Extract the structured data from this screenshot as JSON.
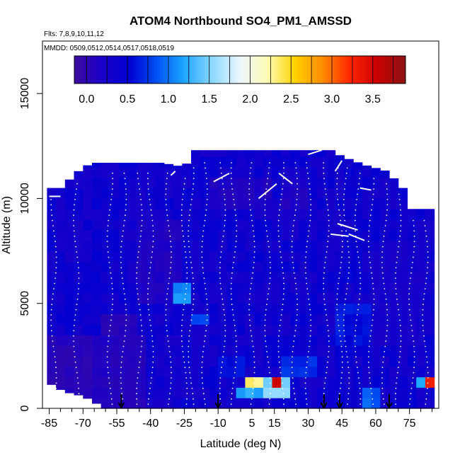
{
  "chart_data": {
    "type": "heatmap",
    "title": "ATOM4 Northbound SO4_PM1_AMSSD",
    "flights_note": "Flts: 7,8,9,10,11,12",
    "dates_note": "MMDD: 0509,0512,0514,0517,0518,0519",
    "xlabel": "Latitude (deg N)",
    "ylabel": "Altitude (m)",
    "xlim": [
      -88,
      88
    ],
    "ylim": [
      0,
      17500
    ],
    "x_ticks": [
      -85,
      -70,
      -55,
      -40,
      -25,
      -10,
      5,
      15,
      30,
      45,
      60,
      75
    ],
    "y_ticks": [
      0,
      5000,
      10000,
      15000
    ],
    "colorbar": {
      "min": -0.15,
      "max": 3.9,
      "ticks": [
        0.0,
        0.5,
        1.0,
        1.5,
        2.0,
        2.5,
        3.0,
        3.5
      ],
      "tick_labels": [
        "0.0",
        "0.5",
        "1.0",
        "1.5",
        "2.0",
        "2.5",
        "3.0",
        "3.5"
      ],
      "colors": [
        "#3d0a9e",
        "#1a00c8",
        "#0000d2",
        "#0052f5",
        "#1ea8ff",
        "#8cd8ff",
        "#ecf6ff",
        "#fffcb4",
        "#ffd200",
        "#ff8c00",
        "#ff2400",
        "#c80000",
        "#8c1414"
      ]
    },
    "column_tops_m": [
      [
        -85,
        10500
      ],
      [
        -80,
        10500
      ],
      [
        -75,
        11000
      ],
      [
        -70,
        11500
      ],
      [
        -65,
        11700
      ],
      [
        -55,
        11700
      ],
      [
        -45,
        11700
      ],
      [
        -35,
        11700
      ],
      [
        -25,
        11500
      ],
      [
        -20,
        12300
      ],
      [
        -10,
        12300
      ],
      [
        0,
        12300
      ],
      [
        10,
        12300
      ],
      [
        20,
        12300
      ],
      [
        30,
        12300
      ],
      [
        40,
        12300
      ],
      [
        45,
        12000
      ],
      [
        55,
        11600
      ],
      [
        65,
        11300
      ],
      [
        72,
        10500
      ],
      [
        76,
        9500
      ],
      [
        85,
        9500
      ]
    ],
    "column_bottoms_m": [
      [
        -85,
        1200
      ],
      [
        -80,
        900
      ],
      [
        -75,
        700
      ],
      [
        -70,
        600
      ],
      [
        -65,
        300
      ],
      [
        -60,
        0
      ],
      [
        85,
        0
      ]
    ],
    "background_value": 0.35,
    "patches": [
      {
        "lat": [
          -62,
          -45
        ],
        "alt": [
          1500,
          4500
        ],
        "value": 0.1
      },
      {
        "lat": [
          -85,
          -65
        ],
        "alt": [
          1000,
          3000
        ],
        "value": 0.05
      },
      {
        "lat": [
          -45,
          -25
        ],
        "alt": [
          5000,
          9000
        ],
        "value": 0.15
      },
      {
        "lat": [
          -30,
          -22
        ],
        "alt": [
          4800,
          5800
        ],
        "value": 1.1
      },
      {
        "lat": [
          -22,
          -15
        ],
        "alt": [
          3800,
          4500
        ],
        "value": 0.8
      },
      {
        "lat": [
          -10,
          0
        ],
        "alt": [
          1500,
          2500
        ],
        "value": 0.6
      },
      {
        "lat": [
          0,
          8
        ],
        "alt": [
          400,
          900
        ],
        "value": 1.2
      },
      {
        "lat": [
          3,
          13
        ],
        "alt": [
          1200,
          1700
        ],
        "value": 2.3
      },
      {
        "lat": [
          10,
          20
        ],
        "alt": [
          500,
          1300
        ],
        "value": 1.5
      },
      {
        "lat": [
          13,
          15
        ],
        "alt": [
          1000,
          1600
        ],
        "value": 3.1
      },
      {
        "lat": [
          14,
          16
        ],
        "alt": [
          1100,
          1500
        ],
        "value": 3.6
      },
      {
        "lat": [
          20,
          32
        ],
        "alt": [
          1500,
          2300
        ],
        "value": 0.7
      },
      {
        "lat": [
          44,
          60
        ],
        "alt": [
          3000,
          5000
        ],
        "value": 0.6
      },
      {
        "lat": [
          48,
          55
        ],
        "alt": [
          6000,
          7000
        ],
        "value": 0.5
      },
      {
        "lat": [
          20,
          30
        ],
        "alt": [
          9500,
          11000
        ],
        "value": 0.15
      },
      {
        "lat": [
          -15,
          15
        ],
        "alt": [
          9500,
          11200
        ],
        "value": 0.15
      },
      {
        "lat": [
          78,
          84
        ],
        "alt": [
          1100,
          1600
        ],
        "value": 1.2
      },
      {
        "lat": [
          81,
          84
        ],
        "alt": [
          1100,
          1600
        ],
        "value": 3.2
      },
      {
        "lat": [
          55,
          62
        ],
        "alt": [
          100,
          800
        ],
        "value": 0.9
      },
      {
        "lat": [
          60,
          80
        ],
        "alt": [
          3000,
          8000
        ],
        "value": 0.25
      }
    ],
    "vertical_profiles_lat": [
      -83,
      -73,
      -58,
      -52,
      -45,
      -40,
      -32,
      -25,
      -22,
      -16,
      -8,
      -3,
      5,
      12,
      18,
      24,
      30,
      38,
      44,
      47,
      52,
      58,
      64,
      70,
      76,
      82
    ],
    "arrow_markers_lat": [
      -53,
      -10,
      37,
      44,
      66
    ],
    "flight_track_segments": [
      {
        "lat": [
          -85,
          -80
        ],
        "alt": [
          10100,
          10100
        ]
      },
      {
        "lat": [
          -77,
          -72
        ],
        "alt": [
          11300,
          11600
        ]
      },
      {
        "lat": [
          -31,
          -29
        ],
        "alt": [
          11100,
          11300
        ]
      },
      {
        "lat": [
          -12,
          -5
        ],
        "alt": [
          10800,
          11200
        ]
      },
      {
        "lat": [
          8,
          16
        ],
        "alt": [
          10000,
          10700
        ]
      },
      {
        "lat": [
          17,
          23
        ],
        "alt": [
          11200,
          10700
        ]
      },
      {
        "lat": [
          30,
          36
        ],
        "alt": [
          12100,
          12300
        ]
      },
      {
        "lat": [
          42,
          45
        ],
        "alt": [
          11300,
          11800
        ]
      },
      {
        "lat": [
          53,
          58
        ],
        "alt": [
          10500,
          10400
        ]
      },
      {
        "lat": [
          40,
          48
        ],
        "alt": [
          8300,
          8200
        ]
      },
      {
        "lat": [
          48,
          55
        ],
        "alt": [
          8300,
          8000
        ]
      },
      {
        "lat": [
          73,
          77
        ],
        "alt": [
          11000,
          11000
        ]
      },
      {
        "lat": [
          43,
          52
        ],
        "alt": [
          8800,
          8500
        ]
      }
    ]
  }
}
